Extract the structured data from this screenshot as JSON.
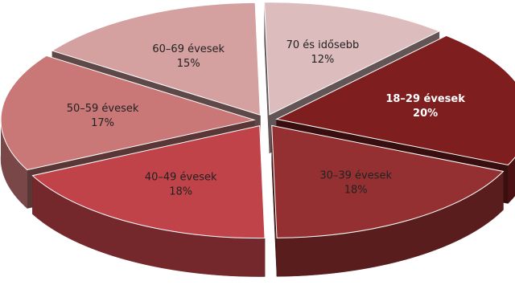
{
  "chart_data": {
    "type": "pie",
    "title": "",
    "unit": "%",
    "slices": [
      {
        "label": "70 és idősebb",
        "value": 12,
        "value_label": "12%",
        "color": "#dcbcbc",
        "text_color": "#222222"
      },
      {
        "label": "18–29 évesek",
        "value": 20,
        "value_label": "20%",
        "color": "#7e1e1f",
        "text_color": "#ffffff"
      },
      {
        "label": "30–39 évesek",
        "value": 18,
        "value_label": "18%",
        "color": "#953032",
        "text_color": "#222222"
      },
      {
        "label": "40–49 évesek",
        "value": 18,
        "value_label": "18%",
        "color": "#c1434a",
        "text_color": "#222222"
      },
      {
        "label": "50–59 évesek",
        "value": 17,
        "value_label": "17%",
        "color": "#c97777",
        "text_color": "#222222"
      },
      {
        "label": "60–69 évesek",
        "value": 15,
        "value_label": "15%",
        "color": "#d4a0a0",
        "text_color": "#222222"
      }
    ],
    "style": "3d-exploded-pie",
    "legend": "none"
  }
}
